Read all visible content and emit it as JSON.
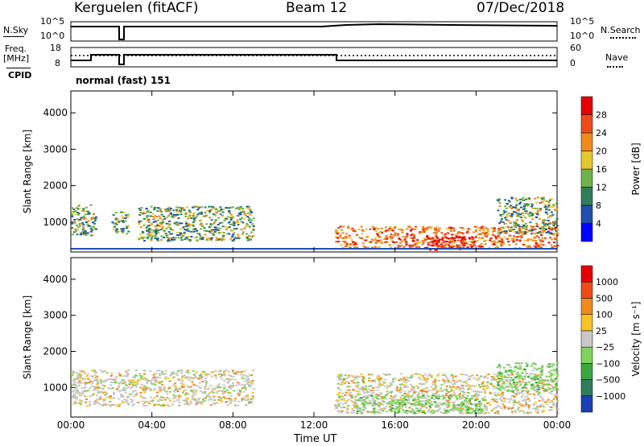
{
  "header": {
    "station": "Kerguelen (fitACF)",
    "beam": "Beam 12",
    "date": "07/Dec/2018"
  },
  "panels": {
    "nsky_label": "N.Sky",
    "nsky_ticks": [
      "10^5",
      "10^0"
    ],
    "nsearch_label": "N.Search",
    "nsearch_ticks": [
      "10^5",
      "10^0"
    ],
    "freq_label": "Freq.",
    "freq_unit": "[MHz]",
    "freq_ticks": [
      "18",
      "8"
    ],
    "nave_label": "Nave",
    "nave_ticks": [
      "60",
      "0"
    ],
    "cpid_label": "CPID",
    "cpid_text": "normal (fast) 151"
  },
  "chart_data": [
    {
      "type": "heatmap",
      "name": "power",
      "ylabel": "Slant Range [km]",
      "ylim": [
        180,
        4600
      ],
      "yticks": [
        "4000",
        "3000",
        "2000",
        "1000"
      ],
      "colorbar": {
        "label": "Power [dB]",
        "ticks": [
          "28",
          "24",
          "20",
          "16",
          "12",
          "8",
          "4"
        ],
        "colors": [
          "#0000ff",
          "#1f4fb0",
          "#2e7d5b",
          "#6fb24a",
          "#e6c62e",
          "#f08a1c",
          "#ef4b17",
          "#e60000"
        ]
      },
      "regions": [
        {
          "t0": 0.0,
          "t1": 1.2,
          "r0": 650,
          "r1": 1500,
          "level": "mid"
        },
        {
          "t0": 2.0,
          "t1": 2.8,
          "r0": 700,
          "r1": 1300,
          "level": "mid"
        },
        {
          "t0": 3.3,
          "t1": 9.0,
          "r0": 500,
          "r1": 1450,
          "level": "mid"
        },
        {
          "t0": 13.0,
          "t1": 24.0,
          "r0": 300,
          "r1": 900,
          "level": "high"
        },
        {
          "t0": 17.5,
          "t1": 20.0,
          "r0": 250,
          "r1": 650,
          "level": "max"
        },
        {
          "t0": 21.0,
          "t1": 24.0,
          "r0": 700,
          "r1": 1700,
          "level": "mid"
        }
      ]
    },
    {
      "type": "heatmap",
      "name": "velocity",
      "ylabel": "Slant Range [km]",
      "ylim": [
        180,
        4600
      ],
      "yticks": [
        "4000",
        "3000",
        "2000",
        "1000"
      ],
      "colorbar": {
        "label": "Velocity [m s⁻¹]",
        "ticks": [
          "1000",
          "500",
          "100",
          "25",
          "−25",
          "−100",
          "−500",
          "−1000"
        ],
        "colors": [
          "#1a3fb8",
          "#2e7d5b",
          "#39a93f",
          "#7fd35a",
          "#c8c8c8",
          "#f7c325",
          "#f08a1c",
          "#ef4b17",
          "#e60000"
        ]
      },
      "regions": [
        {
          "t0": 0.0,
          "t1": 9.0,
          "r0": 500,
          "r1": 1500,
          "level": "grey"
        },
        {
          "t0": 13.0,
          "t1": 24.0,
          "r0": 300,
          "r1": 1400,
          "level": "grey"
        },
        {
          "t0": 14.0,
          "t1": 20.5,
          "r0": 300,
          "r1": 800,
          "level": "green"
        },
        {
          "t0": 21.0,
          "t1": 24.0,
          "r0": 900,
          "r1": 1700,
          "level": "green"
        }
      ]
    }
  ],
  "xaxis": {
    "label": "Time UT",
    "ticks": [
      "00:00",
      "04:00",
      "08:00",
      "12:00",
      "16:00",
      "20:00",
      "00:00"
    ]
  }
}
